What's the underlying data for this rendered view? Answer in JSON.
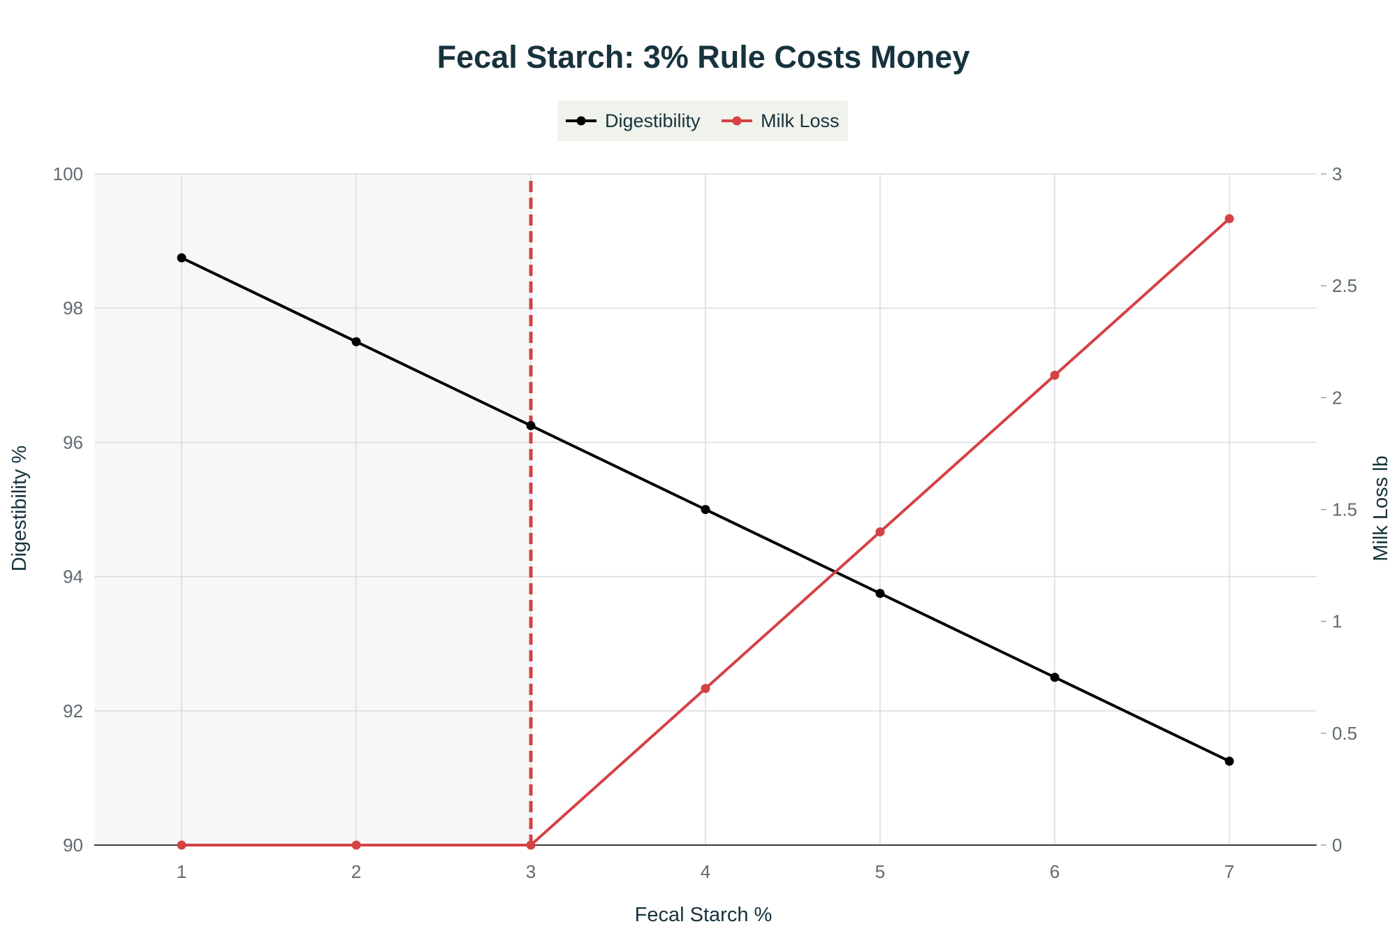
{
  "chart_data": {
    "type": "line",
    "title": "Fecal Starch: 3% Rule Costs Money",
    "xlabel": "Fecal Starch %",
    "ylabel": "Digestibility %",
    "y2label": "Milk Loss lb",
    "x": [
      1,
      2,
      3,
      4,
      5,
      6,
      7
    ],
    "xlim": [
      0.5,
      7.5
    ],
    "ylim": [
      90,
      100
    ],
    "y2lim": [
      0,
      3
    ],
    "xticks": [
      1,
      2,
      3,
      4,
      5,
      6,
      7
    ],
    "yticks": [
      90,
      92,
      94,
      96,
      98,
      100
    ],
    "y2ticks": [
      0,
      0.5,
      1,
      1.5,
      2,
      2.5,
      3
    ],
    "grid": true,
    "legend_position": "top-center",
    "threshold_x": 3,
    "shaded_region_x": [
      0.5,
      3
    ],
    "series": [
      {
        "name": "Digestibility",
        "axis": "left",
        "color": "#000000",
        "values": [
          98.75,
          97.5,
          96.25,
          95,
          93.75,
          92.5,
          91.25
        ]
      },
      {
        "name": "Milk Loss",
        "axis": "right",
        "color": "#d44244",
        "values": [
          0,
          0,
          0,
          0.7,
          1.4,
          2.1,
          2.8
        ]
      }
    ],
    "colors": {
      "grid": "#d9dcdd",
      "axis_line": "#3a3a3a",
      "shade": "#f7f7f7",
      "threshold": "#d44244",
      "legend_bg": "#f0f2ec"
    }
  }
}
